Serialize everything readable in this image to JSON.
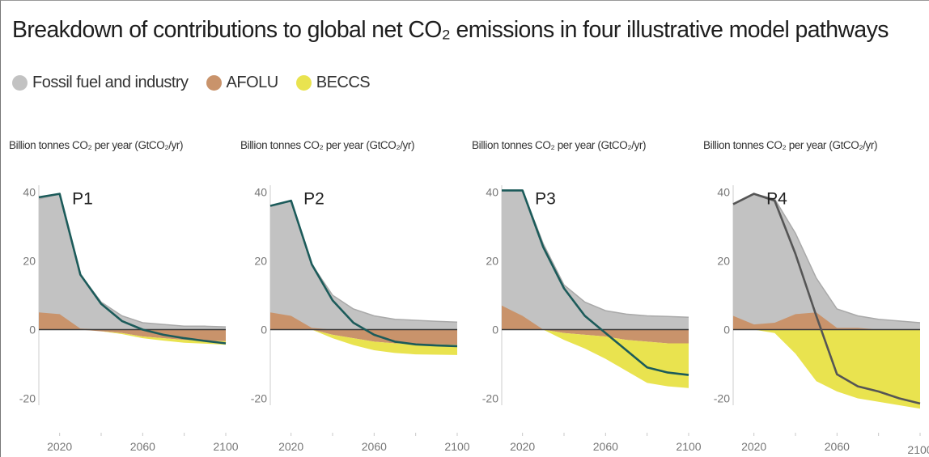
{
  "title": "Breakdown of contributions to global net CO₂ emissions in four illustrative model pathways",
  "colors": {
    "fossil": "#c2c2c2",
    "afolu": "#c9936b",
    "beccs": "#e9e34f",
    "net": "#1c5b5a",
    "net_p4": "#555555",
    "zero_line": "#3a3a3a"
  },
  "legend": [
    {
      "label": "Fossil fuel and industry",
      "color": "#c2c2c2"
    },
    {
      "label": "AFOLU",
      "color": "#c9936b"
    },
    {
      "label": "BECCS",
      "color": "#e9e34f"
    }
  ],
  "chart_data": [
    {
      "type": "area",
      "panel_label": "P1",
      "ylabel": "Billion tonnes CO₂ per year (GtCO₂/yr)",
      "xticks": [
        "2020",
        "2060",
        "2100"
      ],
      "yticks": [
        "40",
        "20",
        "0",
        "-20"
      ],
      "xlim": [
        2010,
        2100
      ],
      "ylim": [
        -22,
        42
      ],
      "x": [
        2010,
        2020,
        2030,
        2040,
        2050,
        2060,
        2070,
        2080,
        2090,
        2100
      ],
      "series": [
        {
          "name": "Fossil fuel and industry",
          "values": [
            38,
            39.5,
            16,
            8,
            4,
            2,
            1.5,
            1,
            1,
            0.8
          ]
        },
        {
          "name": "AFOLU",
          "values": [
            5,
            4.5,
            0.3,
            -0.5,
            -1,
            -2,
            -2.5,
            -3,
            -3.2,
            -3.4
          ]
        },
        {
          "name": "BECCS",
          "values": [
            0,
            0,
            0,
            0,
            -0.3,
            -0.5,
            -0.7,
            -0.8,
            -0.9,
            -1
          ]
        },
        {
          "name": "Net",
          "values": [
            38.5,
            39.5,
            16,
            7.5,
            2.5,
            0,
            -1.5,
            -2.5,
            -3.3,
            -4
          ]
        }
      ]
    },
    {
      "type": "area",
      "panel_label": "P2",
      "ylabel": "Billion tonnes CO₂ per year (GtCO₂/yr)",
      "xticks": [
        "2020",
        "2060",
        "2100"
      ],
      "yticks": [
        "40",
        "20",
        "0",
        "-20"
      ],
      "xlim": [
        2010,
        2100
      ],
      "ylim": [
        -22,
        42
      ],
      "x": [
        2010,
        2020,
        2030,
        2040,
        2050,
        2060,
        2070,
        2080,
        2090,
        2100
      ],
      "series": [
        {
          "name": "Fossil fuel and industry",
          "values": [
            36,
            37.5,
            19,
            10,
            6,
            4,
            3,
            2.7,
            2.4,
            2.2
          ]
        },
        {
          "name": "AFOLU",
          "values": [
            5,
            4,
            0.5,
            -1.5,
            -2.5,
            -3.5,
            -4,
            -4.2,
            -4.3,
            -4.4
          ]
        },
        {
          "name": "BECCS",
          "values": [
            0,
            0,
            0,
            -1,
            -2,
            -2.5,
            -2.8,
            -3,
            -3,
            -3
          ]
        },
        {
          "name": "Net",
          "values": [
            36,
            37.5,
            19,
            8.5,
            2,
            -1.5,
            -3.5,
            -4.3,
            -4.6,
            -4.8
          ]
        }
      ]
    },
    {
      "type": "area",
      "panel_label": "P3",
      "ylabel": "Billion tonnes CO₂ per year (GtCO₂/yr)",
      "xticks": [
        "2020",
        "2060",
        "2100"
      ],
      "yticks": [
        "40",
        "20",
        "0",
        "-20"
      ],
      "xlim": [
        2010,
        2100
      ],
      "ylim": [
        -22,
        42
      ],
      "x": [
        2010,
        2020,
        2030,
        2040,
        2050,
        2060,
        2070,
        2080,
        2090,
        2100
      ],
      "series": [
        {
          "name": "Fossil fuel and industry",
          "values": [
            40.5,
            40.5,
            25,
            13,
            8,
            5.5,
            4.5,
            4,
            3.8,
            3.6
          ]
        },
        {
          "name": "AFOLU",
          "values": [
            7,
            4,
            0,
            -1,
            -1.5,
            -2,
            -3,
            -3.5,
            -4,
            -4
          ]
        },
        {
          "name": "BECCS",
          "values": [
            0,
            0,
            0,
            -2,
            -4,
            -6.5,
            -9,
            -12,
            -12.5,
            -13
          ]
        },
        {
          "name": "Net",
          "values": [
            40.5,
            40.5,
            24,
            12,
            4,
            -1,
            -6,
            -11,
            -12.5,
            -13.2
          ]
        }
      ]
    },
    {
      "type": "area",
      "panel_label": "P4",
      "ylabel": "Billion tonnes CO₂ per year (GtCO₂/yr)",
      "xticks": [
        "2020",
        "2060",
        "2100"
      ],
      "yticks": [
        "40",
        "20",
        "0",
        "-20"
      ],
      "xlim": [
        2010,
        2100
      ],
      "ylim": [
        -22,
        42
      ],
      "x": [
        2010,
        2020,
        2030,
        2040,
        2050,
        2060,
        2070,
        2080,
        2090,
        2100
      ],
      "series": [
        {
          "name": "Fossil fuel and industry",
          "values": [
            36.5,
            39.5,
            38,
            28,
            15,
            6,
            4,
            3,
            2.5,
            2
          ]
        },
        {
          "name": "AFOLU",
          "values": [
            4,
            1.5,
            2,
            4.5,
            5,
            0.5,
            0.5,
            0,
            0,
            0
          ]
        },
        {
          "name": "BECCS",
          "values": [
            0,
            0,
            -1,
            -7,
            -15,
            -18,
            -20,
            -21,
            -22,
            -23
          ]
        },
        {
          "name": "Net",
          "values": [
            36.5,
            39.5,
            37.5,
            22,
            4,
            -13,
            -16.5,
            -18,
            -20,
            -21.5
          ]
        }
      ]
    }
  ]
}
